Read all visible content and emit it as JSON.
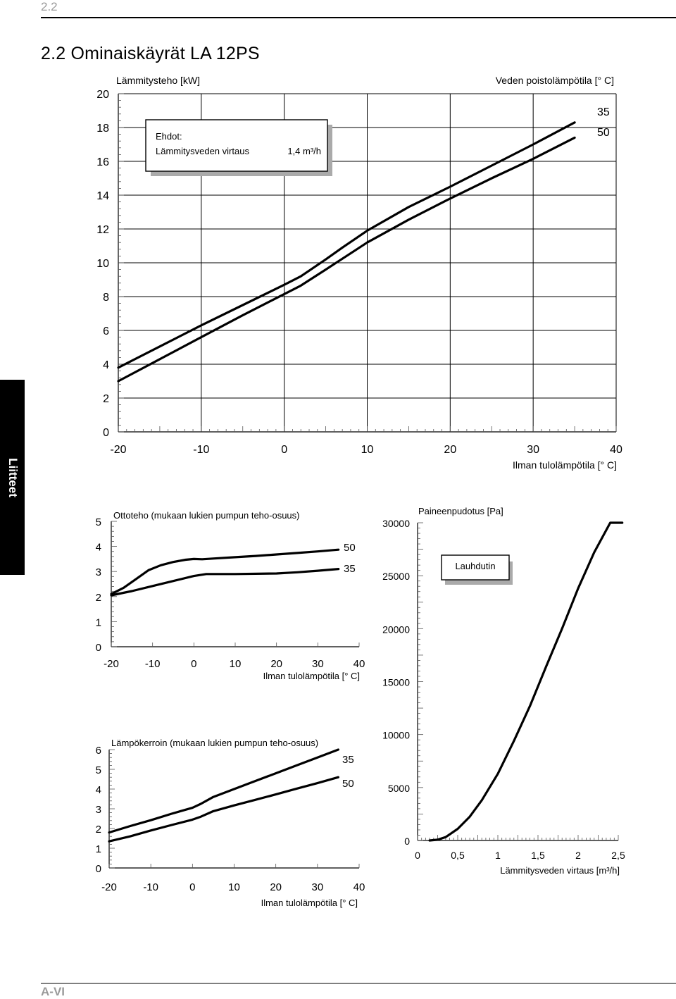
{
  "page": {
    "header_number": "2.2",
    "title": "2.2   Ominaiskäyrät LA 12PS",
    "side_tab": "Liitteet",
    "footer": "A-VI"
  },
  "chart_data": [
    {
      "id": "heating",
      "type": "line",
      "title": "Lämmitysteho [kW]",
      "legend_title": "Veden poistolämpötila [° C]",
      "xlabel": "Ilman tulolämpötila [° C]",
      "xlim": [
        -20,
        40
      ],
      "ylim": [
        0,
        20
      ],
      "xticks": [
        -20,
        -10,
        0,
        10,
        20,
        30,
        40
      ],
      "yticks": [
        0,
        2,
        4,
        6,
        8,
        10,
        12,
        14,
        16,
        18,
        20
      ],
      "conditions": {
        "heading": "Ehdot:",
        "label": "Lämmitysveden virtaus",
        "value": "1,4 m³/h"
      },
      "series": [
        {
          "name": "35",
          "x": [
            -20,
            -15,
            -10,
            -5,
            0,
            2,
            5,
            7,
            10,
            15,
            20,
            25,
            30,
            35
          ],
          "y": [
            3.8,
            5.05,
            6.3,
            7.5,
            8.7,
            9.2,
            10.2,
            10.9,
            11.9,
            13.3,
            14.5,
            15.75,
            17.0,
            18.3
          ]
        },
        {
          "name": "50",
          "x": [
            -20,
            -15,
            -10,
            -5,
            0,
            2,
            5,
            10,
            15,
            20,
            25,
            30,
            35
          ],
          "y": [
            3.0,
            4.3,
            5.6,
            6.9,
            8.15,
            8.65,
            9.6,
            11.2,
            12.55,
            13.8,
            15.0,
            16.15,
            17.4
          ]
        }
      ]
    },
    {
      "id": "input",
      "type": "line",
      "title": "Ottoteho (mukaan lukien  pumpun teho-osuus)",
      "xlabel": "Ilman tulolämpötila [° C]",
      "xlim": [
        -20,
        40
      ],
      "ylim": [
        0,
        5
      ],
      "xticks": [
        -20,
        -10,
        0,
        10,
        20,
        30,
        40
      ],
      "yticks": [
        0,
        1,
        2,
        3,
        4,
        5
      ],
      "series": [
        {
          "name": "50",
          "x": [
            -20,
            -17,
            -14,
            -11,
            -8,
            -5,
            -2,
            0,
            2,
            5,
            10,
            15,
            20,
            25,
            30,
            35
          ],
          "y": [
            2.1,
            2.35,
            2.7,
            3.05,
            3.25,
            3.38,
            3.47,
            3.5,
            3.49,
            3.52,
            3.57,
            3.62,
            3.68,
            3.74,
            3.8,
            3.87
          ]
        },
        {
          "name": "35",
          "x": [
            -20,
            -15,
            -10,
            -5,
            0,
            3,
            10,
            20,
            25,
            30,
            35
          ],
          "y": [
            2.05,
            2.22,
            2.42,
            2.62,
            2.82,
            2.9,
            2.9,
            2.92,
            2.97,
            3.03,
            3.1
          ]
        }
      ]
    },
    {
      "id": "cop",
      "type": "line",
      "title": "Lämpökerroin (mukaan lukien  pumpun teho-osuus)",
      "xlabel": "Ilman tulolämpötila [° C]",
      "xlim": [
        -20,
        40
      ],
      "ylim": [
        0,
        6
      ],
      "xticks": [
        -20,
        -10,
        0,
        10,
        20,
        30,
        40
      ],
      "yticks": [
        0,
        1,
        2,
        3,
        4,
        5,
        6
      ],
      "series": [
        {
          "name": "35",
          "x": [
            -20,
            -15,
            -10,
            -5,
            0,
            2,
            5,
            10,
            15,
            20,
            25,
            30,
            35
          ],
          "y": [
            1.8,
            2.12,
            2.42,
            2.75,
            3.05,
            3.25,
            3.6,
            4.0,
            4.4,
            4.8,
            5.2,
            5.6,
            6.0
          ]
        },
        {
          "name": "50",
          "x": [
            -20,
            -15,
            -10,
            -5,
            0,
            2,
            5,
            10,
            15,
            20,
            25,
            30,
            35
          ],
          "y": [
            1.35,
            1.6,
            1.9,
            2.18,
            2.45,
            2.6,
            2.88,
            3.17,
            3.45,
            3.73,
            4.02,
            4.3,
            4.6
          ]
        }
      ]
    },
    {
      "id": "pressure",
      "type": "line",
      "title": "Paineenpudotus [Pa]",
      "xlabel": "Lämmitysveden virtaus [m³/h]",
      "xlim": [
        0,
        2.5
      ],
      "ylim": [
        0,
        30000
      ],
      "xticks": [
        0,
        0.5,
        1,
        1.5,
        2,
        2.5
      ],
      "xtick_labels": [
        "0",
        "0,5",
        "1",
        "1,5",
        "2",
        "2,5"
      ],
      "yticks": [
        0,
        5000,
        10000,
        15000,
        20000,
        25000,
        30000
      ],
      "series": [
        {
          "name": "Lauhdutin",
          "x": [
            0.15,
            0.25,
            0.35,
            0.5,
            0.65,
            0.8,
            1.0,
            1.2,
            1.4,
            1.6,
            1.8,
            2.0,
            2.2,
            2.4,
            2.55
          ],
          "y": [
            0,
            70,
            320,
            1100,
            2250,
            3800,
            6300,
            9400,
            12700,
            16400,
            20000,
            23800,
            27200,
            30000,
            30000
          ]
        }
      ]
    }
  ]
}
